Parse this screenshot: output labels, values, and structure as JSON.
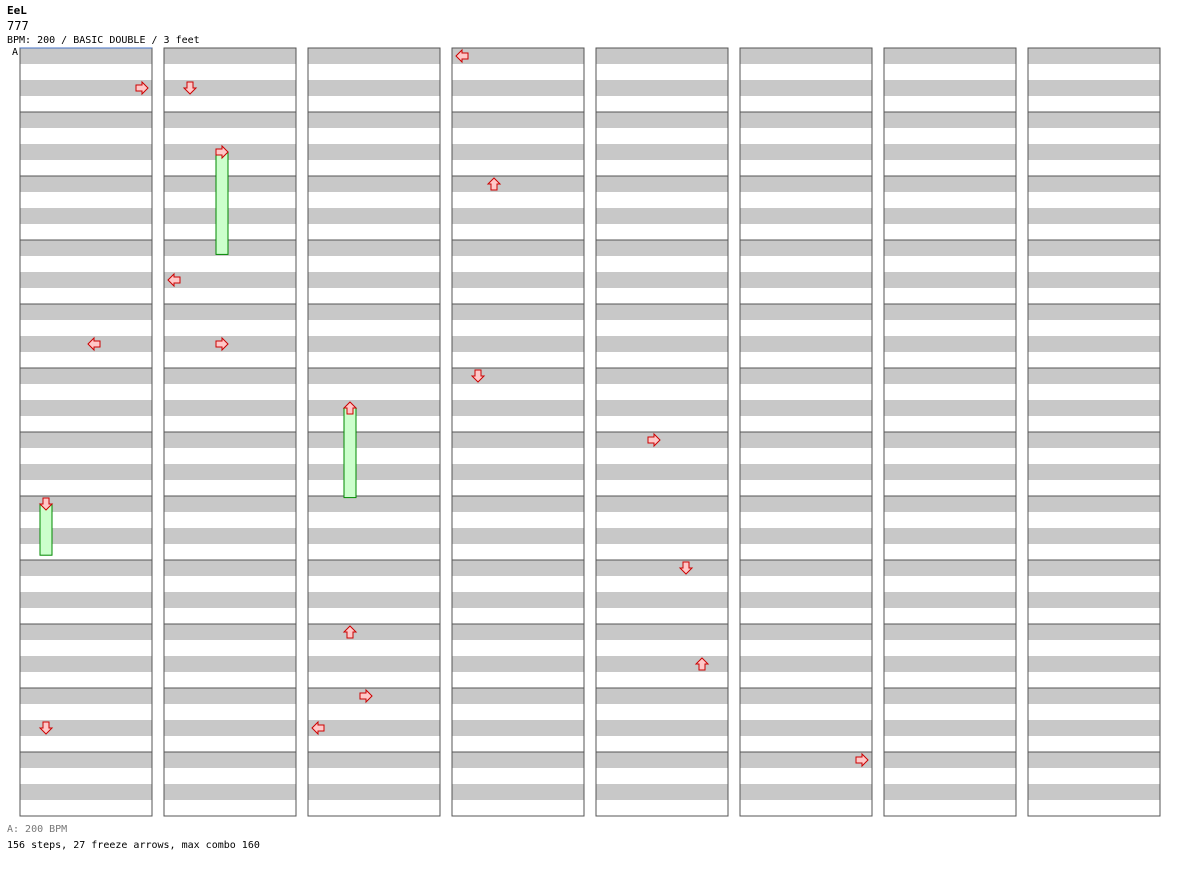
{
  "header": {
    "artist": "EeL",
    "title": "777",
    "info": "BPM: 200 / BASIC DOUBLE / 3 feet",
    "marker": "A"
  },
  "footer": {
    "bpm_change": "A: 200 BPM",
    "stats": "156 steps, 27 freeze arrows, max combo 160"
  },
  "colors": {
    "arrow_fill": "#ffc8c8",
    "arrow_stroke": "#cc0000",
    "freeze_fill": "#ccffcc",
    "freeze_stroke": "#008800",
    "stripe": "#c8c8c8"
  },
  "chart_data": {
    "type": "step-chart",
    "lanes": [
      "L1",
      "D1",
      "U1",
      "R1",
      "L2",
      "D2",
      "U2",
      "R2"
    ],
    "columns": 8,
    "measures_per_column": 12,
    "rows_per_measure": 4,
    "arrows": [
      {
        "b": 0.5,
        "l": 7
      },
      {
        "b": 4.5,
        "l": 4
      },
      {
        "b": 10.5,
        "l": 1
      },
      {
        "b": 0.5,
        "l": 1
      },
      {
        "b": 3.5,
        "l": 0
      },
      {
        "b": 4.5,
        "l": 3
      },
      {
        "b": 9,
        "l": 2
      },
      {
        "b": 10,
        "l": 3
      },
      {
        "b": 10.5,
        "l": 0
      },
      {
        "b": 0,
        "l": 0
      },
      {
        "b": 2,
        "l": 2
      },
      {
        "b": 5,
        "l": 1
      },
      {
        "b": 6,
        "l": 3
      },
      {
        "b": 8,
        "l": 5
      },
      {
        "b": 9.5,
        "l": 6
      },
      {
        "b": 11,
        "l": 7
      }
    ],
    "freezes": [
      {
        "b": 7,
        "l": 1,
        "len": 0.8
      },
      {
        "b": 1.5,
        "l": 3,
        "len": 1.6
      },
      {
        "b": 5.5,
        "l": 2,
        "len": 1.4
      }
    ]
  }
}
